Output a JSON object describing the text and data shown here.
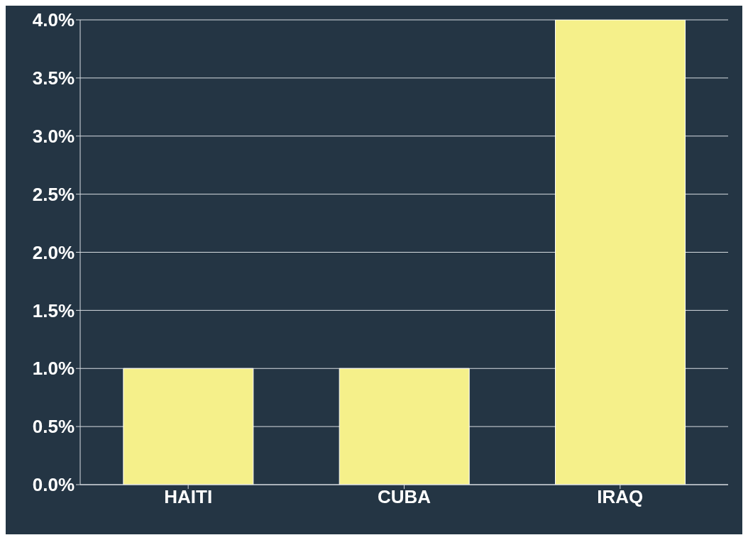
{
  "chart_data": {
    "type": "bar",
    "categories": [
      "HAITI",
      "CUBA",
      "IRAQ"
    ],
    "values": [
      1.0,
      1.0,
      4.0
    ],
    "color": "#f5f08a",
    "ylim": [
      0,
      4
    ],
    "yticks": [
      {
        "value": 0,
        "label": "0.0%"
      },
      {
        "value": 0.5,
        "label": "0.5%"
      },
      {
        "value": 1,
        "label": "1.0%"
      },
      {
        "value": 1.5,
        "label": "1.5%"
      },
      {
        "value": 2,
        "label": "2.0%"
      },
      {
        "value": 2.5,
        "label": "2.5%"
      },
      {
        "value": 3,
        "label": "3.0%"
      },
      {
        "value": 3.5,
        "label": "3.5%"
      },
      {
        "value": 4,
        "label": "4.0%"
      }
    ],
    "grid": "y"
  }
}
